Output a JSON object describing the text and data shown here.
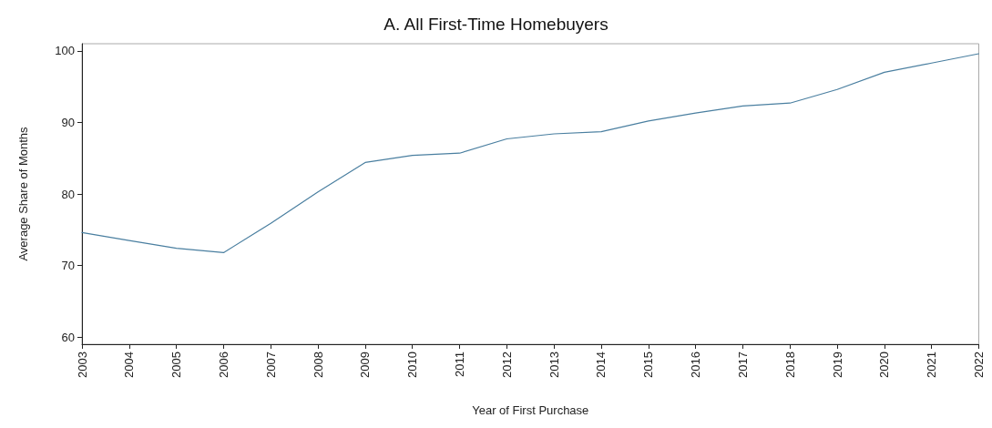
{
  "chart_data": {
    "type": "line",
    "title": "A. All First-Time Homebuyers",
    "xlabel": "Year of First Purchase",
    "ylabel": "Average Share of Months",
    "categories": [
      "2003",
      "2004",
      "2005",
      "2006",
      "2007",
      "2008",
      "2009",
      "2010",
      "2011",
      "2012",
      "2013",
      "2014",
      "2015",
      "2016",
      "2017",
      "2018",
      "2019",
      "2020",
      "2021",
      "2022"
    ],
    "series": [
      {
        "color": "#4a7fa0",
        "values": [
          74.6,
          73.5,
          72.4,
          71.8,
          75.9,
          80.3,
          84.4,
          85.4,
          85.7,
          87.7,
          88.4,
          88.7,
          90.2,
          91.3,
          92.3,
          92.7,
          94.6,
          97.0,
          98.3,
          99.6
        ]
      }
    ],
    "ylim": [
      59,
      101
    ],
    "yticks": [
      60,
      70,
      80,
      90,
      100
    ],
    "grid": false,
    "marker": "none",
    "line_style": "solid"
  }
}
